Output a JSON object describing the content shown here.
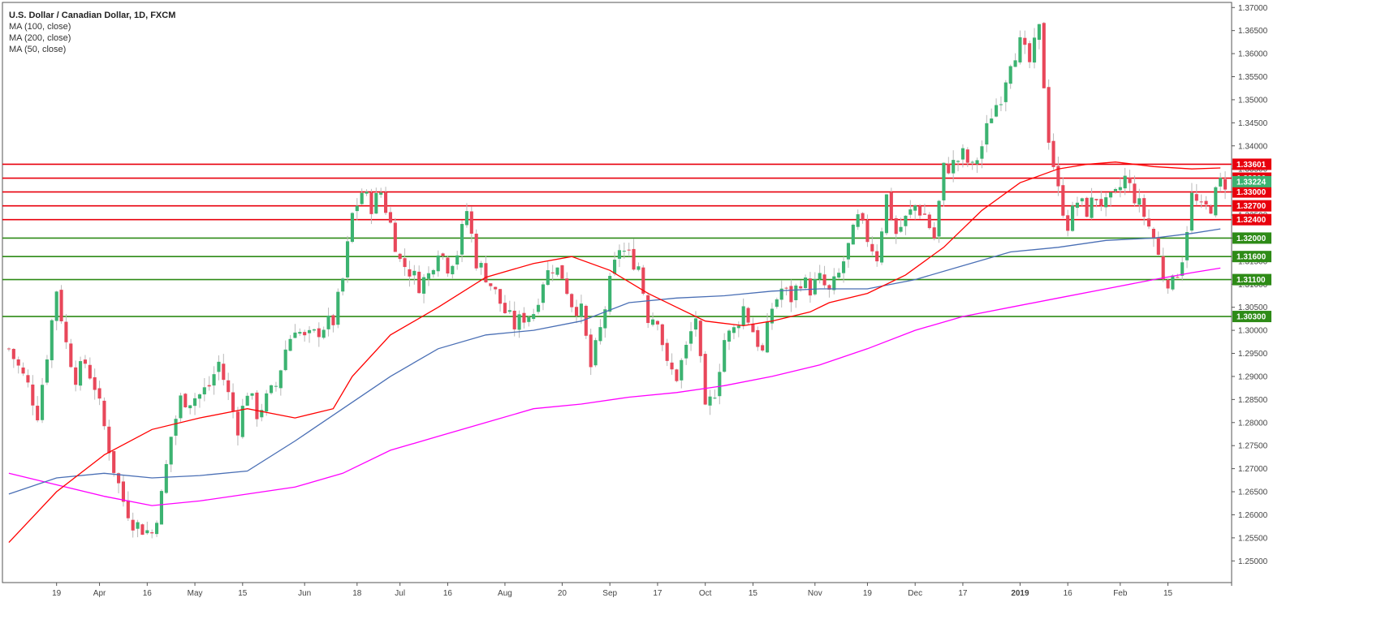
{
  "legend": {
    "title": "U.S. Dollar / Canadian Dollar, 1D, FXCM",
    "ma100": "MA (100, close)",
    "ma200": "MA (200, close)",
    "ma50": "MA (50, close)"
  },
  "colors": {
    "up": "#3cb371",
    "down": "#e8475a",
    "resistance": "#e8000d",
    "support": "#2e8b17",
    "ma50": "#ff0000",
    "ma100": "#4a6fb5",
    "ma200": "#ff00ff",
    "current": "#3cb371"
  },
  "chart_data": {
    "type": "candlestick",
    "title": "U.S. Dollar / Canadian Dollar, 1D, FXCM",
    "ylim": [
      1.2453,
      1.3711
    ],
    "y_ticks": [
      "1.25000",
      "1.25500",
      "1.26000",
      "1.26500",
      "1.27000",
      "1.27500",
      "1.28000",
      "1.28500",
      "1.29000",
      "1.29500",
      "1.30000",
      "1.30500",
      "1.31000",
      "1.31500",
      "1.32000",
      "1.32500",
      "1.33000",
      "1.33500",
      "1.34000",
      "1.34500",
      "1.35000",
      "1.35500",
      "1.36000",
      "1.36500",
      "1.37000"
    ],
    "x_ticks": [
      {
        "label": "19",
        "bar": 10
      },
      {
        "label": "Apr",
        "bar": 19
      },
      {
        "label": "16",
        "bar": 29
      },
      {
        "label": "May",
        "bar": 39
      },
      {
        "label": "15",
        "bar": 49
      },
      {
        "label": "Jun",
        "bar": 62
      },
      {
        "label": "18",
        "bar": 73
      },
      {
        "label": "Jul",
        "bar": 82
      },
      {
        "label": "16",
        "bar": 92
      },
      {
        "label": "Aug",
        "bar": 104
      },
      {
        "label": "20",
        "bar": 116
      },
      {
        "label": "Sep",
        "bar": 126
      },
      {
        "label": "17",
        "bar": 136
      },
      {
        "label": "Oct",
        "bar": 146
      },
      {
        "label": "15",
        "bar": 156
      },
      {
        "label": "Nov",
        "bar": 169
      },
      {
        "label": "19",
        "bar": 180
      },
      {
        "label": "Dec",
        "bar": 190
      },
      {
        "label": "17",
        "bar": 200
      },
      {
        "label": "2019",
        "bar": 212
      },
      {
        "label": "16",
        "bar": 222
      },
      {
        "label": "Feb",
        "bar": 233
      },
      {
        "label": "15",
        "bar": 243
      }
    ],
    "levels": [
      {
        "value": 1.33601,
        "label": "1.33601",
        "type": "resistance"
      },
      {
        "value": 1.333,
        "label": "1.33300",
        "type": "resistance"
      },
      {
        "value": 1.33,
        "label": "1.33000",
        "type": "resistance"
      },
      {
        "value": 1.327,
        "label": "1.32700",
        "type": "resistance"
      },
      {
        "value": 1.324,
        "label": "1.32400",
        "type": "resistance"
      },
      {
        "value": 1.32,
        "label": "1.32000",
        "type": "support"
      },
      {
        "value": 1.316,
        "label": "1.31600",
        "type": "support"
      },
      {
        "value": 1.311,
        "label": "1.31100",
        "type": "support"
      },
      {
        "value": 1.303,
        "label": "1.30300",
        "type": "support"
      }
    ],
    "current_price": {
      "value": 1.33224,
      "label": "1.33224"
    },
    "anchors": [
      [
        0,
        1.296
      ],
      [
        2,
        1.292
      ],
      [
        4,
        1.288
      ],
      [
        6,
        1.282
      ],
      [
        8,
        1.295
      ],
      [
        10,
        1.309
      ],
      [
        12,
        1.297
      ],
      [
        14,
        1.29
      ],
      [
        16,
        1.293
      ],
      [
        18,
        1.288
      ],
      [
        20,
        1.279
      ],
      [
        22,
        1.27
      ],
      [
        24,
        1.263
      ],
      [
        26,
        1.2585
      ],
      [
        28,
        1.257
      ],
      [
        30,
        1.256
      ],
      [
        32,
        1.264
      ],
      [
        34,
        1.277
      ],
      [
        36,
        1.285
      ],
      [
        38,
        1.285
      ],
      [
        40,
        1.286
      ],
      [
        42,
        1.288
      ],
      [
        44,
        1.293
      ],
      [
        46,
        1.286
      ],
      [
        48,
        1.279
      ],
      [
        50,
        1.287
      ],
      [
        52,
        1.282
      ],
      [
        54,
        1.285
      ],
      [
        56,
        1.288
      ],
      [
        58,
        1.296
      ],
      [
        60,
        1.301
      ],
      [
        62,
        1.298
      ],
      [
        64,
        1.299
      ],
      [
        66,
        1.301
      ],
      [
        68,
        1.302
      ],
      [
        70,
        1.311
      ],
      [
        72,
        1.325
      ],
      [
        74,
        1.33
      ],
      [
        76,
        1.327
      ],
      [
        78,
        1.33
      ],
      [
        80,
        1.323
      ],
      [
        82,
        1.315
      ],
      [
        84,
        1.313
      ],
      [
        86,
        1.31
      ],
      [
        88,
        1.312
      ],
      [
        90,
        1.318
      ],
      [
        92,
        1.314
      ],
      [
        94,
        1.317
      ],
      [
        96,
        1.326
      ],
      [
        98,
        1.315
      ],
      [
        100,
        1.312
      ],
      [
        102,
        1.308
      ],
      [
        104,
        1.304
      ],
      [
        106,
        1.301
      ],
      [
        108,
        1.303
      ],
      [
        110,
        1.304
      ],
      [
        112,
        1.311
      ],
      [
        114,
        1.314
      ],
      [
        116,
        1.312
      ],
      [
        118,
        1.306
      ],
      [
        120,
        1.304
      ],
      [
        122,
        1.292
      ],
      [
        124,
        1.3
      ],
      [
        126,
        1.31
      ],
      [
        128,
        1.318
      ],
      [
        130,
        1.316
      ],
      [
        132,
        1.314
      ],
      [
        134,
        1.303
      ],
      [
        136,
        1.303
      ],
      [
        138,
        1.292
      ],
      [
        140,
        1.29
      ],
      [
        142,
        1.296
      ],
      [
        144,
        1.303
      ],
      [
        146,
        1.282
      ],
      [
        148,
        1.287
      ],
      [
        150,
        1.298
      ],
      [
        152,
        1.3
      ],
      [
        154,
        1.305
      ],
      [
        156,
        1.3
      ],
      [
        158,
        1.295
      ],
      [
        160,
        1.305
      ],
      [
        162,
        1.309
      ],
      [
        164,
        1.307
      ],
      [
        166,
        1.311
      ],
      [
        168,
        1.309
      ],
      [
        170,
        1.311
      ],
      [
        172,
        1.308
      ],
      [
        174,
        1.312
      ],
      [
        176,
        1.318
      ],
      [
        178,
        1.324
      ],
      [
        180,
        1.32
      ],
      [
        182,
        1.316
      ],
      [
        184,
        1.329
      ],
      [
        186,
        1.321
      ],
      [
        188,
        1.324
      ],
      [
        190,
        1.327
      ],
      [
        192,
        1.325
      ],
      [
        194,
        1.32
      ],
      [
        196,
        1.335
      ],
      [
        198,
        1.336
      ],
      [
        200,
        1.338
      ],
      [
        202,
        1.335
      ],
      [
        204,
        1.34
      ],
      [
        206,
        1.347
      ],
      [
        208,
        1.351
      ],
      [
        210,
        1.359
      ],
      [
        212,
        1.362
      ],
      [
        214,
        1.358
      ],
      [
        216,
        1.365
      ],
      [
        218,
        1.342
      ],
      [
        220,
        1.33
      ],
      [
        222,
        1.323
      ],
      [
        224,
        1.328
      ],
      [
        226,
        1.326
      ],
      [
        228,
        1.329
      ],
      [
        230,
        1.327
      ],
      [
        232,
        1.329
      ],
      [
        234,
        1.333
      ],
      [
        236,
        1.329
      ],
      [
        238,
        1.325
      ],
      [
        240,
        1.32
      ],
      [
        242,
        1.312
      ],
      [
        244,
        1.31
      ],
      [
        246,
        1.316
      ],
      [
        248,
        1.329
      ],
      [
        250,
        1.326
      ],
      [
        252,
        1.327
      ],
      [
        254,
        1.332
      ]
    ],
    "ma50_points": [
      [
        0,
        1.254
      ],
      [
        10,
        1.265
      ],
      [
        20,
        1.273
      ],
      [
        30,
        1.2785
      ],
      [
        40,
        1.281
      ],
      [
        50,
        1.283
      ],
      [
        60,
        1.281
      ],
      [
        68,
        1.283
      ],
      [
        72,
        1.29
      ],
      [
        80,
        1.299
      ],
      [
        90,
        1.305
      ],
      [
        100,
        1.3115
      ],
      [
        110,
        1.3145
      ],
      [
        118,
        1.316
      ],
      [
        126,
        1.313
      ],
      [
        134,
        1.308
      ],
      [
        140,
        1.305
      ],
      [
        146,
        1.302
      ],
      [
        154,
        1.301
      ],
      [
        160,
        1.302
      ],
      [
        168,
        1.304
      ],
      [
        172,
        1.306
      ],
      [
        180,
        1.308
      ],
      [
        188,
        1.312
      ],
      [
        196,
        1.318
      ],
      [
        204,
        1.326
      ],
      [
        212,
        1.332
      ],
      [
        220,
        1.335
      ],
      [
        226,
        1.336
      ],
      [
        232,
        1.3365
      ],
      [
        240,
        1.3355
      ],
      [
        248,
        1.335
      ],
      [
        254,
        1.3352
      ]
    ],
    "ma100_points": [
      [
        0,
        1.2645
      ],
      [
        10,
        1.268
      ],
      [
        20,
        1.269
      ],
      [
        30,
        1.268
      ],
      [
        40,
        1.2685
      ],
      [
        50,
        1.2695
      ],
      [
        60,
        1.276
      ],
      [
        70,
        1.283
      ],
      [
        80,
        1.29
      ],
      [
        90,
        1.296
      ],
      [
        100,
        1.299
      ],
      [
        110,
        1.3
      ],
      [
        120,
        1.302
      ],
      [
        130,
        1.306
      ],
      [
        140,
        1.307
      ],
      [
        150,
        1.3075
      ],
      [
        160,
        1.3085
      ],
      [
        170,
        1.309
      ],
      [
        180,
        1.309
      ],
      [
        190,
        1.311
      ],
      [
        200,
        1.314
      ],
      [
        210,
        1.317
      ],
      [
        220,
        1.318
      ],
      [
        230,
        1.3195
      ],
      [
        240,
        1.32
      ],
      [
        248,
        1.321
      ],
      [
        254,
        1.322
      ]
    ],
    "ma200_points": [
      [
        0,
        1.269
      ],
      [
        10,
        1.2665
      ],
      [
        20,
        1.264
      ],
      [
        30,
        1.262
      ],
      [
        40,
        1.263
      ],
      [
        50,
        1.2645
      ],
      [
        60,
        1.266
      ],
      [
        70,
        1.269
      ],
      [
        80,
        1.274
      ],
      [
        90,
        1.277
      ],
      [
        100,
        1.28
      ],
      [
        110,
        1.283
      ],
      [
        120,
        1.284
      ],
      [
        130,
        1.2855
      ],
      [
        140,
        1.2865
      ],
      [
        150,
        1.288
      ],
      [
        160,
        1.29
      ],
      [
        170,
        1.2925
      ],
      [
        180,
        1.296
      ],
      [
        190,
        1.3
      ],
      [
        200,
        1.303
      ],
      [
        210,
        1.305
      ],
      [
        220,
        1.307
      ],
      [
        230,
        1.309
      ],
      [
        240,
        1.311
      ],
      [
        248,
        1.3125
      ],
      [
        254,
        1.3135
      ]
    ]
  }
}
